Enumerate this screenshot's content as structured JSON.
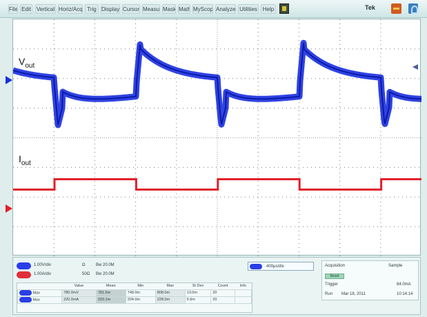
{
  "menubar": {
    "items": [
      "File",
      "Edit",
      "Vertical",
      "Horiz/Acq",
      "Trig",
      "Display",
      "Cursors",
      "Measure",
      "Mask",
      "Math",
      "MyScope",
      "Analyze",
      "Utilities",
      "Help"
    ],
    "brand": "Tek"
  },
  "traces": {
    "vout": {
      "label_main": "V",
      "label_sub": "out",
      "color": "#1a2fe0"
    },
    "iout": {
      "label_main": "I",
      "label_sub": "out",
      "color": "#e0202a"
    }
  },
  "waveform": {
    "period_divisions": 4.0,
    "vout_baseline_div": 2.1,
    "iout_low_div": 5.75,
    "iout_high_div": 5.4
  },
  "readout": {
    "ch1_scale": "1.00V/div",
    "ch2_scale": "1.00A/div",
    "ch1_bw": "Bw 20.0M",
    "ch2_bw": "Bw 20.0M",
    "ch1_coupling": "Ω",
    "ch2_coupling": "50Ω",
    "timebase": "400μs/div",
    "acq_title": "Acquisition",
    "acq_value": "Sample",
    "acq_reset": "Reset",
    "trigger_label": "Trigger",
    "trigger_level": "84.0mA",
    "run_state": "Run",
    "date": "Mar 18, 2011",
    "time": "10:14:14",
    "table_headers": [
      "",
      "Value",
      "Mean",
      "Min",
      "Max",
      "St Dev",
      "Count",
      "Info"
    ],
    "rows": [
      [
        "Max",
        "780.0mV",
        "781.5m",
        "748.0m",
        "808.0m",
        "13.0m",
        "20",
        ""
      ],
      [
        "Max",
        "220.0mA",
        "220.1m",
        "204.0m",
        "228.0m",
        "5.6m",
        "20",
        ""
      ]
    ]
  }
}
